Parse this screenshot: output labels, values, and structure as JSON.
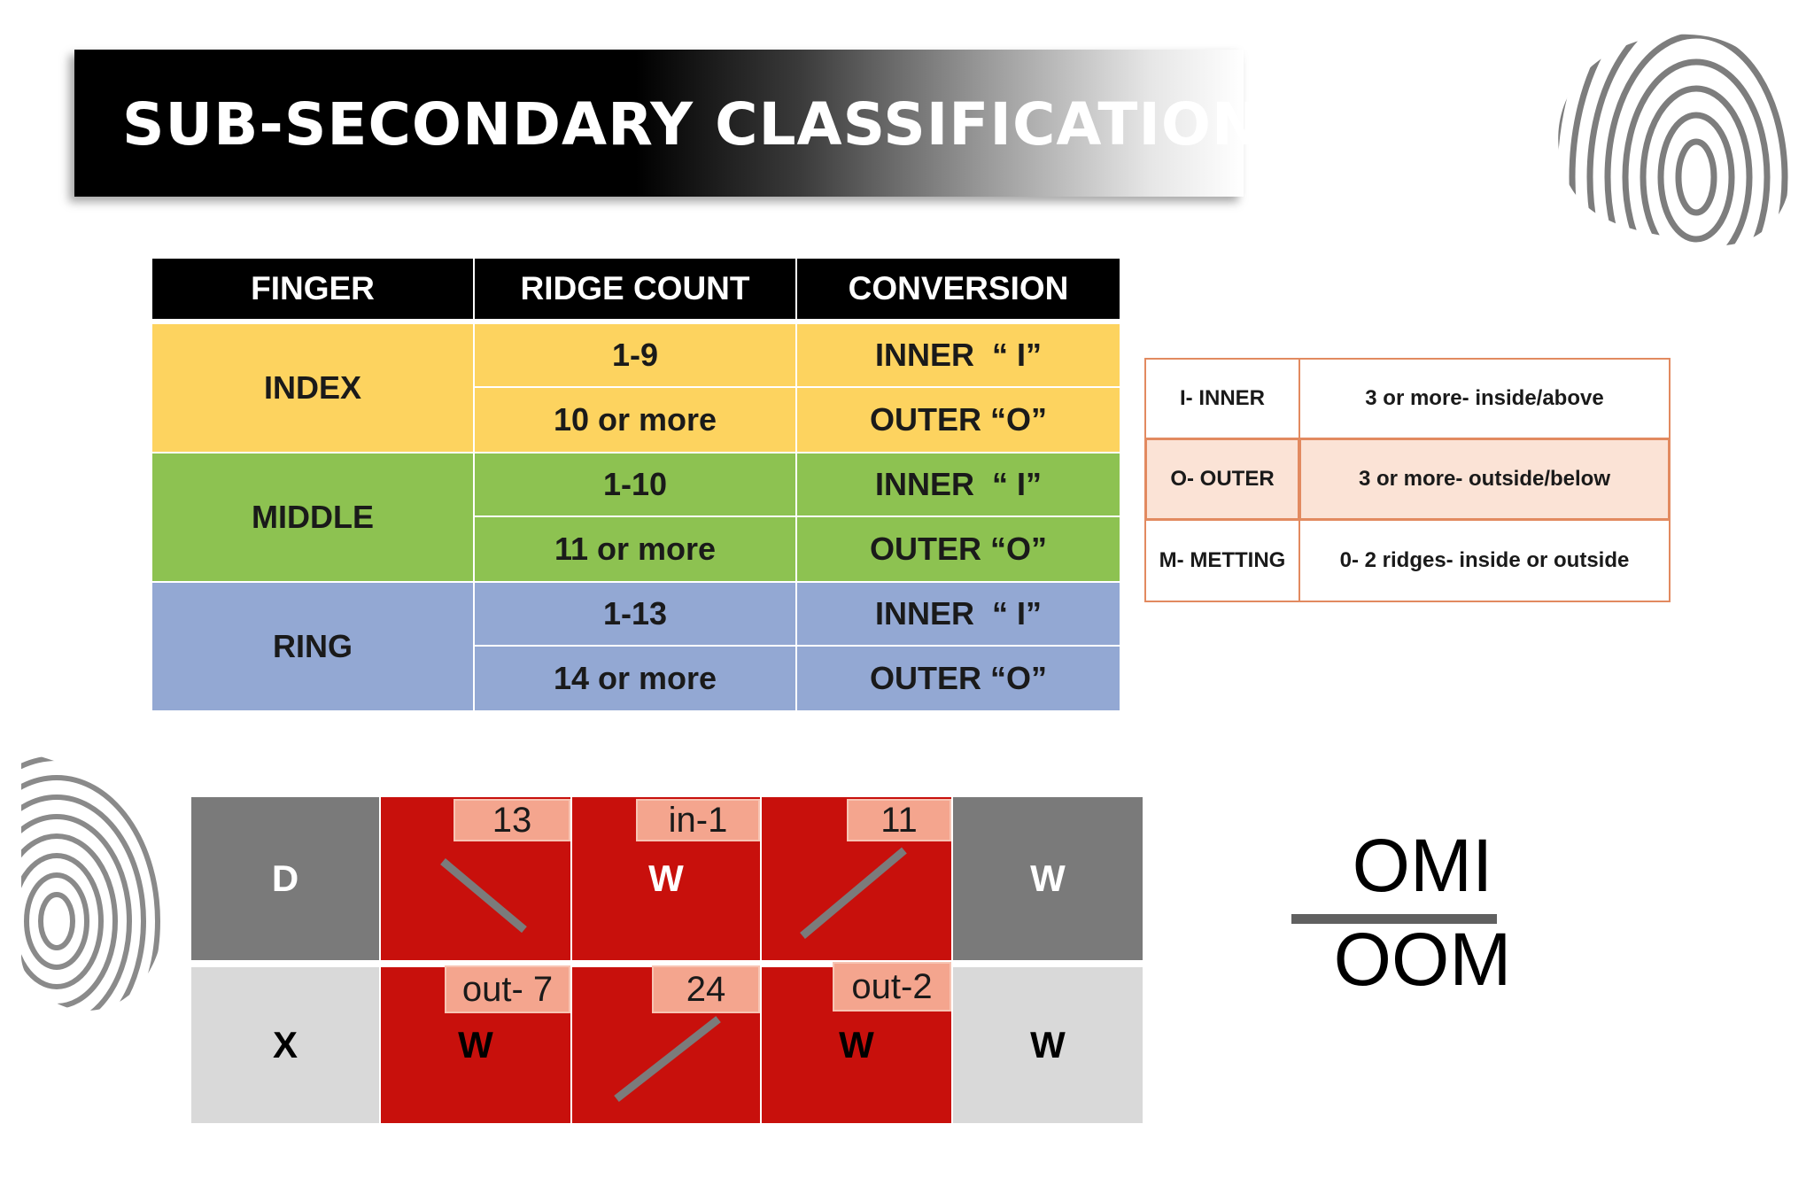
{
  "title": "SUB-SECONDARY CLASSIFICATION",
  "table": {
    "headers": [
      "FINGER",
      "RIDGE COUNT",
      "CONVERSION"
    ],
    "groups": [
      {
        "finger": "INDEX",
        "rows": [
          {
            "ridge": "1-9",
            "conv": "INNER  “ I”"
          },
          {
            "ridge": "10 or more",
            "conv": "OUTER “O”"
          }
        ]
      },
      {
        "finger": "MIDDLE",
        "rows": [
          {
            "ridge": "1-10",
            "conv": "INNER  “ I”"
          },
          {
            "ridge": "11 or more",
            "conv": "OUTER “O”"
          }
        ]
      },
      {
        "finger": "RING",
        "rows": [
          {
            "ridge": "1-13",
            "conv": "INNER  “ I”"
          },
          {
            "ridge": "14 or more",
            "conv": "OUTER “O”"
          }
        ]
      }
    ]
  },
  "legend": [
    {
      "code": "I- INNER",
      "desc": "3 or more- inside/above"
    },
    {
      "code": "O- OUTER",
      "desc": "3 or more-  outside/below"
    },
    {
      "code": "M- METTING",
      "desc": "0- 2 ridges- inside or outside"
    }
  ],
  "grid": {
    "top": {
      "first": "D",
      "middle": [
        "",
        "W",
        ""
      ],
      "last": "W",
      "tags": [
        "13",
        "in-1",
        "11"
      ]
    },
    "bottom": {
      "first": "X",
      "middle": [
        "W",
        "",
        "W"
      ],
      "last": "W",
      "tags": [
        "out- 7",
        "24",
        "out-2"
      ]
    }
  },
  "fraction": {
    "numerator": "OMI",
    "denominator": "OOM"
  },
  "colors": {
    "index": "#fdd35f",
    "middle": "#8dc251",
    "ring": "#93a8d3",
    "grid_red": "#c8100c",
    "tag": "#f4a58e",
    "legend_border": "#e28a60"
  },
  "decor": {
    "icons": [
      "fingerprint-icon-top-right",
      "fingerprint-icon-left"
    ]
  }
}
